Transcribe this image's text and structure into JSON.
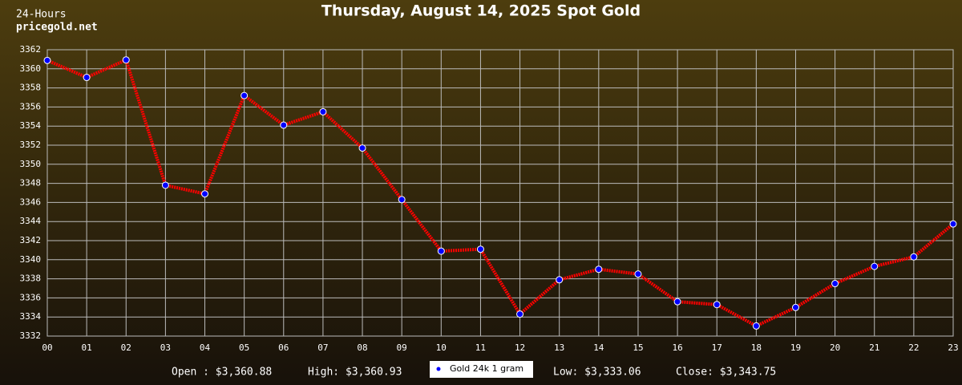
{
  "chart_data": {
    "type": "line",
    "title": "Thursday, August 14, 2025 Spot Gold",
    "corner_lines": [
      "24-Hours",
      "pricegold.net"
    ],
    "categories": [
      "00",
      "01",
      "02",
      "03",
      "04",
      "05",
      "06",
      "07",
      "08",
      "09",
      "10",
      "11",
      "12",
      "13",
      "14",
      "15",
      "16",
      "17",
      "18",
      "19",
      "20",
      "21",
      "22",
      "23"
    ],
    "series": [
      {
        "name": "Gold 24k 1 gram",
        "color": "#ff0000",
        "marker_color": "#0000ff",
        "values": [
          3360.88,
          3359.1,
          3360.93,
          3347.8,
          3346.9,
          3357.2,
          3354.1,
          3355.5,
          3351.7,
          3346.3,
          3340.9,
          3341.1,
          3334.3,
          3337.9,
          3339.0,
          3338.5,
          3335.6,
          3335.3,
          3333.06,
          3335.0,
          3337.5,
          3339.3,
          3340.3,
          3343.75
        ]
      }
    ],
    "ylim": [
      3332,
      3362
    ],
    "yticks": [
      3332,
      3334,
      3336,
      3338,
      3340,
      3342,
      3344,
      3346,
      3348,
      3350,
      3352,
      3354,
      3356,
      3358,
      3360,
      3362
    ],
    "grid": true,
    "summary_left": [
      "Open : $3,360.88",
      "High: $3,360.93"
    ],
    "summary_right": [
      "Low: $3,333.06",
      "Close: $3,343.75"
    ]
  }
}
